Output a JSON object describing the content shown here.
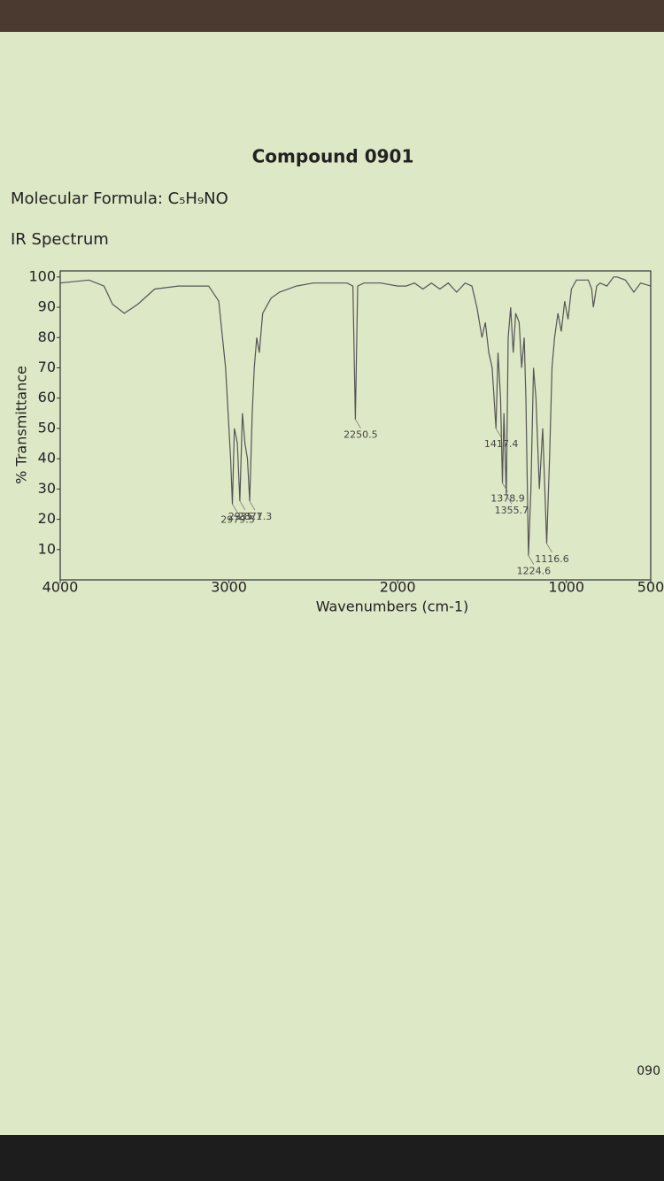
{
  "header": {
    "title": "Compound 0901",
    "formula": "Molecular Formula: C₅H₉NO",
    "section": "IR Spectrum"
  },
  "page_number": "090",
  "chart_data": {
    "type": "line",
    "color": "#555555",
    "xlabel": "Wavenumbers (cm-1)",
    "ylabel": "% Transmittance",
    "xlim": [
      4000,
      500
    ],
    "xticks": [
      4000,
      3000,
      2000,
      1000,
      500
    ],
    "ylim": [
      0,
      102
    ],
    "yticks": [
      10,
      20,
      30,
      40,
      50,
      60,
      70,
      80,
      90,
      100
    ],
    "x": [
      4000,
      3830,
      3740,
      3690,
      3620,
      3540,
      3440,
      3300,
      3120,
      3060,
      3020,
      2990,
      2979.5,
      2968,
      2960,
      2950,
      2935.1,
      2920,
      2905,
      2890,
      2877.3,
      2862,
      2850,
      2835,
      2820,
      2800,
      2750,
      2700,
      2600,
      2500,
      2300,
      2265,
      2250.5,
      2237,
      2200,
      2100,
      2000,
      1950,
      1900,
      1850,
      1800,
      1750,
      1700,
      1650,
      1600,
      1560,
      1530,
      1500,
      1480,
      1460,
      1440,
      1417.4,
      1405,
      1390,
      1378.9,
      1370,
      1355.7,
      1345,
      1330,
      1315,
      1300,
      1280,
      1265,
      1250,
      1240,
      1224.6,
      1210,
      1195,
      1180,
      1160,
      1140,
      1116.6,
      1100,
      1085,
      1070,
      1050,
      1030,
      1010,
      990,
      970,
      940,
      900,
      870,
      850,
      840,
      820,
      800,
      760,
      720,
      700,
      650,
      600,
      560,
      500
    ],
    "values": [
      98,
      99,
      97,
      91,
      88,
      91,
      96,
      97,
      97,
      92,
      70,
      40,
      25,
      50,
      48,
      45,
      26,
      55,
      45,
      40,
      26,
      55,
      70,
      80,
      75,
      88,
      93,
      95,
      97,
      98,
      98,
      97,
      53,
      97,
      98,
      98,
      97,
      97,
      98,
      96,
      98,
      96,
      98,
      95,
      98,
      97,
      90,
      80,
      85,
      75,
      70,
      50,
      75,
      60,
      32,
      55,
      28,
      80,
      90,
      75,
      88,
      85,
      70,
      80,
      60,
      8,
      30,
      70,
      60,
      30,
      50,
      12,
      40,
      70,
      80,
      88,
      82,
      92,
      86,
      96,
      99,
      99,
      99,
      96,
      90,
      97,
      98,
      97,
      100,
      100,
      99,
      95,
      98,
      97
    ],
    "peaks": {
      "x": [
        2979.5,
        2935.1,
        2877.3,
        2250.5,
        1417.4,
        1378.9,
        1355.7,
        1224.6,
        1116.6
      ],
      "y": [
        25,
        26,
        26,
        53,
        50,
        32,
        28,
        8,
        12
      ]
    }
  }
}
